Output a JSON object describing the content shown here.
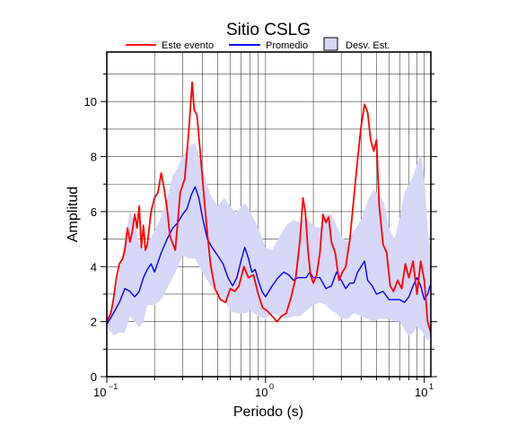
{
  "chart_data": {
    "type": "line",
    "title": "Sitio CSLG",
    "xlabel": "Periodo (s)",
    "ylabel": "Amplitud",
    "xscale": "log",
    "xlim": [
      0.1,
      11
    ],
    "ylim": [
      0,
      11.8
    ],
    "grid": true,
    "legend_position": "top",
    "x_tick_labels": [
      "10",
      "10",
      "10"
    ],
    "x_tick_exponents": [
      "−1",
      "0",
      "1"
    ],
    "x_tick_values": [
      0.1,
      1,
      10
    ],
    "y_ticks": [
      0,
      2,
      4,
      6,
      8,
      10
    ],
    "legend": [
      {
        "label": "Este evento",
        "kind": "line",
        "color": "#ff0000"
      },
      {
        "label": "Promedio",
        "kind": "line",
        "color": "#0000ff"
      },
      {
        "label": "Desv. Est.",
        "kind": "box",
        "color": "#d7d7f7"
      }
    ],
    "series": [
      {
        "name": "Este evento",
        "color": "#ff0000",
        "x": [
          0.1,
          0.106,
          0.11,
          0.115,
          0.12,
          0.126,
          0.13,
          0.135,
          0.14,
          0.145,
          0.15,
          0.155,
          0.16,
          0.165,
          0.17,
          0.175,
          0.18,
          0.19,
          0.2,
          0.21,
          0.22,
          0.23,
          0.24,
          0.25,
          0.27,
          0.29,
          0.31,
          0.33,
          0.345,
          0.355,
          0.37,
          0.39,
          0.41,
          0.43,
          0.45,
          0.48,
          0.52,
          0.56,
          0.6,
          0.64,
          0.68,
          0.73,
          0.78,
          0.84,
          0.9,
          0.96,
          1.02,
          1.1,
          1.18,
          1.26,
          1.35,
          1.45,
          1.55,
          1.65,
          1.72,
          1.78,
          1.85,
          1.92,
          2.0,
          2.1,
          2.2,
          2.3,
          2.4,
          2.5,
          2.6,
          2.75,
          2.9,
          3.05,
          3.2,
          3.4,
          3.6,
          3.8,
          4.0,
          4.2,
          4.4,
          4.6,
          4.8,
          5.0,
          5.2,
          5.5,
          5.8,
          6.1,
          6.4,
          6.8,
          7.2,
          7.6,
          8.0,
          8.5,
          9.0,
          9.5,
          10.0,
          10.5,
          11.0
        ],
        "y": [
          2.0,
          2.3,
          2.8,
          3.6,
          4.1,
          4.3,
          4.6,
          5.4,
          4.9,
          5.3,
          5.9,
          5.4,
          6.2,
          4.7,
          5.5,
          4.6,
          4.8,
          6.0,
          6.5,
          6.7,
          7.4,
          6.8,
          6.1,
          5.1,
          4.6,
          6.7,
          7.2,
          9.1,
          10.7,
          9.7,
          9.5,
          8.0,
          6.5,
          5.2,
          4.1,
          3.2,
          2.8,
          2.7,
          3.2,
          3.1,
          3.3,
          4.0,
          3.6,
          3.7,
          3.0,
          2.5,
          2.4,
          2.2,
          2.0,
          2.2,
          2.3,
          2.9,
          3.6,
          5.0,
          6.5,
          6.0,
          4.6,
          3.7,
          3.4,
          3.7,
          4.5,
          5.9,
          5.6,
          5.8,
          4.9,
          4.5,
          3.5,
          3.8,
          4.0,
          5.0,
          6.5,
          7.9,
          9.1,
          9.9,
          9.6,
          8.6,
          8.2,
          8.6,
          6.2,
          4.8,
          4.5,
          3.3,
          3.1,
          3.5,
          3.2,
          4.1,
          3.6,
          4.2,
          3.0,
          4.2,
          3.5,
          2.0,
          1.6
        ]
      },
      {
        "name": "Promedio",
        "color": "#0000ff",
        "x": [
          0.1,
          0.11,
          0.12,
          0.13,
          0.14,
          0.15,
          0.16,
          0.17,
          0.18,
          0.19,
          0.2,
          0.22,
          0.24,
          0.26,
          0.28,
          0.3,
          0.32,
          0.34,
          0.36,
          0.38,
          0.4,
          0.43,
          0.46,
          0.5,
          0.54,
          0.58,
          0.62,
          0.66,
          0.7,
          0.74,
          0.78,
          0.82,
          0.86,
          0.9,
          0.95,
          1.0,
          1.1,
          1.2,
          1.3,
          1.4,
          1.5,
          1.6,
          1.7,
          1.8,
          1.9,
          2.0,
          2.2,
          2.4,
          2.6,
          2.8,
          3.0,
          3.2,
          3.4,
          3.6,
          3.8,
          4.0,
          4.2,
          4.4,
          4.7,
          5.0,
          5.5,
          6.0,
          6.5,
          7.0,
          7.5,
          8.0,
          8.5,
          9.0,
          9.5,
          10.0,
          10.5,
          11.0
        ],
        "y": [
          1.9,
          2.3,
          2.7,
          3.2,
          3.1,
          2.9,
          3.1,
          3.6,
          3.9,
          4.1,
          3.8,
          4.5,
          5.0,
          5.4,
          5.6,
          5.9,
          6.1,
          6.6,
          6.9,
          6.5,
          5.8,
          5.0,
          4.7,
          4.4,
          4.1,
          3.6,
          3.3,
          3.6,
          4.2,
          4.7,
          4.3,
          3.8,
          3.9,
          3.5,
          3.1,
          2.9,
          3.3,
          3.6,
          3.8,
          3.7,
          3.5,
          3.6,
          3.6,
          3.6,
          3.8,
          3.6,
          3.6,
          3.2,
          3.3,
          3.8,
          3.5,
          3.2,
          3.4,
          3.4,
          3.8,
          4.0,
          4.2,
          3.5,
          3.3,
          3.0,
          3.1,
          2.8,
          2.8,
          2.8,
          2.7,
          2.9,
          3.3,
          3.6,
          3.3,
          2.8,
          3.0,
          3.4
        ]
      }
    ],
    "std_band": {
      "name": "Desv. Est.",
      "color": "#d7d7f7",
      "x": [
        0.1,
        0.11,
        0.12,
        0.13,
        0.14,
        0.15,
        0.16,
        0.17,
        0.18,
        0.2,
        0.22,
        0.24,
        0.26,
        0.28,
        0.3,
        0.33,
        0.36,
        0.4,
        0.45,
        0.5,
        0.55,
        0.6,
        0.65,
        0.7,
        0.75,
        0.8,
        0.9,
        1.0,
        1.1,
        1.2,
        1.35,
        1.5,
        1.65,
        1.8,
        2.0,
        2.2,
        2.4,
        2.6,
        2.8,
        3.0,
        3.3,
        3.6,
        4.0,
        4.4,
        4.8,
        5.2,
        5.6,
        6.0,
        6.5,
        7.0,
        7.5,
        8.0,
        8.5,
        9.0,
        9.5,
        10.0,
        10.5,
        11.0
      ],
      "upper": [
        2.2,
        2.6,
        3.8,
        5.0,
        6.0,
        5.6,
        4.8,
        4.7,
        4.8,
        5.3,
        5.8,
        6.5,
        7.3,
        7.6,
        8.0,
        8.4,
        8.5,
        7.6,
        6.6,
        6.2,
        6.5,
        6.2,
        5.9,
        6.2,
        6.3,
        6.0,
        5.4,
        4.7,
        4.6,
        5.0,
        5.5,
        5.7,
        5.6,
        5.8,
        5.5,
        5.4,
        5.9,
        5.9,
        5.5,
        5.1,
        4.9,
        5.3,
        5.7,
        6.4,
        6.8,
        6.6,
        6.3,
        5.4,
        5.0,
        5.8,
        6.7,
        7.0,
        7.3,
        7.7,
        8.1,
        7.3,
        5.4,
        4.4
      ],
      "lower": [
        1.8,
        1.5,
        1.6,
        1.6,
        2.2,
        2.0,
        1.8,
        2.0,
        2.6,
        2.6,
        2.8,
        3.2,
        3.6,
        4.0,
        4.4,
        4.3,
        4.3,
        3.8,
        3.3,
        3.1,
        2.8,
        2.4,
        2.3,
        2.3,
        2.3,
        2.4,
        2.2,
        2.1,
        2.3,
        2.2,
        2.1,
        2.2,
        2.2,
        2.4,
        2.6,
        2.7,
        2.6,
        2.4,
        2.3,
        2.1,
        2.1,
        2.3,
        2.2,
        2.1,
        2.0,
        2.1,
        2.1,
        2.1,
        2.0,
        2.0,
        1.7,
        1.5,
        1.6,
        1.8,
        1.7,
        1.5,
        1.3,
        1.5
      ]
    }
  }
}
